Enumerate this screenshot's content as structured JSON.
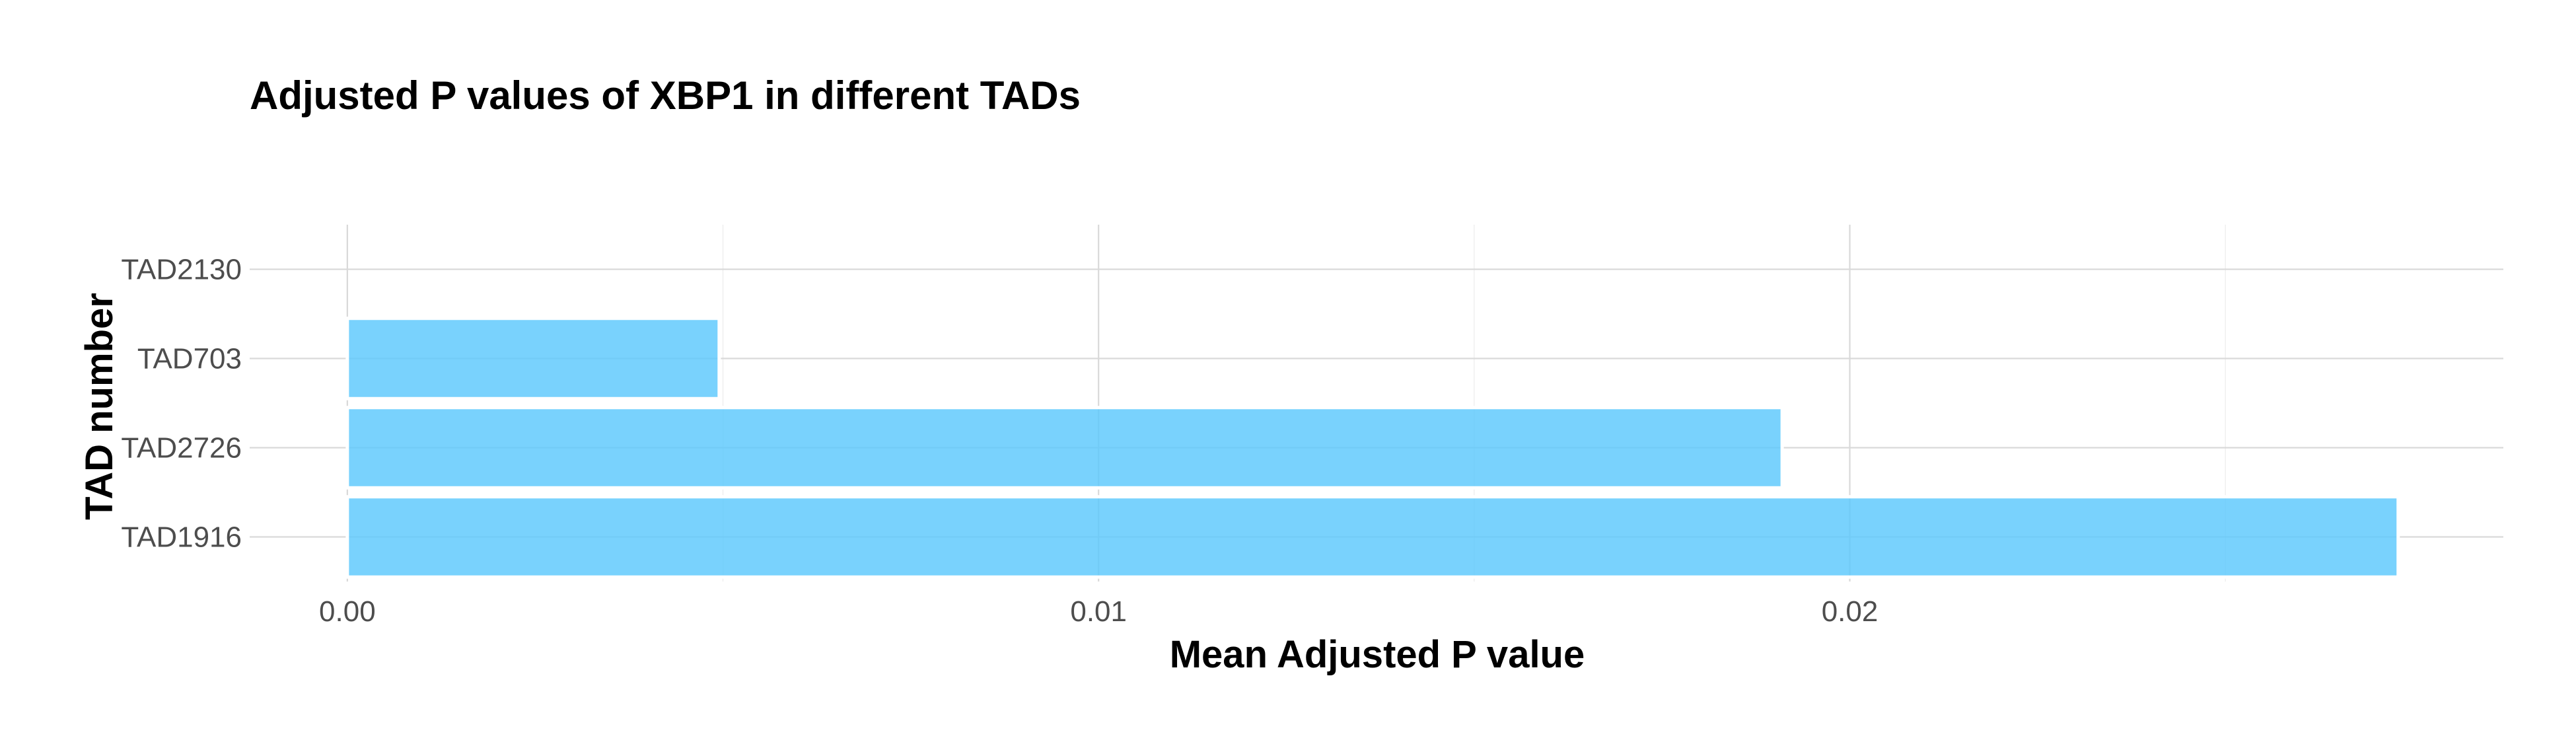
{
  "chart_data": {
    "type": "bar",
    "orientation": "horizontal",
    "title": "Adjusted P values of XBP1 in different TADs",
    "xlabel": "Mean Adjusted P value",
    "ylabel": "TAD number",
    "categories": [
      "TAD1916",
      "TAD2726",
      "TAD703",
      "TAD2130"
    ],
    "values": [
      0.0273,
      0.0191,
      0.00495,
      0
    ],
    "xlim": [
      -0.0013,
      0.0287
    ],
    "xticks": [
      0,
      0.01,
      0.02
    ],
    "xtick_labels": [
      "0.00",
      "0.01",
      "0.02"
    ],
    "bar_color": "#5BC8FC",
    "grid": true
  }
}
